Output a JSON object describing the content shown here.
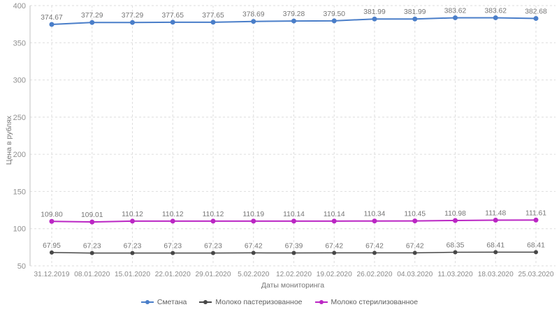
{
  "chart_data": {
    "type": "line",
    "title": "",
    "xlabel": "Даты мониторинга",
    "ylabel": "Цена в рублях",
    "ylim": [
      50,
      400
    ],
    "yticks": [
      400,
      350,
      300,
      250,
      200,
      150,
      100,
      50
    ],
    "grid": true,
    "legend_position": "bottom",
    "categories": [
      "31.12.2019",
      "08.01.2020",
      "15.01.2020",
      "22.01.2020",
      "29.01.2020",
      "5.02.2020",
      "12.02.2020",
      "19.02.2020",
      "26.02.2020",
      "04.03.2020",
      "11.03.2020",
      "18.03.2020",
      "25.03.2020"
    ],
    "series": [
      {
        "name": "Сметана",
        "color": "#4a7ec9",
        "line_width": 2,
        "marker_radius": 3.5,
        "values": [
          374.67,
          377.29,
          377.29,
          377.65,
          377.65,
          378.69,
          379.28,
          379.5,
          381.99,
          381.99,
          383.62,
          383.62,
          382.68
        ]
      },
      {
        "name": "Молоко пастеризованное",
        "color": "#474747",
        "line_width": 1.5,
        "marker_radius": 3,
        "values": [
          67.95,
          67.23,
          67.23,
          67.23,
          67.23,
          67.42,
          67.39,
          67.42,
          67.42,
          67.42,
          68.35,
          68.41,
          68.41
        ]
      },
      {
        "name": "Молоко стерилизованное",
        "color": "#bb26c4",
        "line_width": 2,
        "marker_radius": 3.5,
        "values": [
          109.8,
          109.01,
          110.12,
          110.12,
          110.12,
          110.19,
          110.14,
          110.14,
          110.34,
          110.45,
          110.98,
          111.48,
          111.61
        ]
      }
    ],
    "colors": {
      "grid": "#dedede",
      "axis_line": "#c2c2c2",
      "tick_label": "#8a8a8a",
      "point_label": "#757575",
      "axis_title": "#757575",
      "legend_text": "#5f5f5f",
      "background": "#ffffff"
    }
  }
}
